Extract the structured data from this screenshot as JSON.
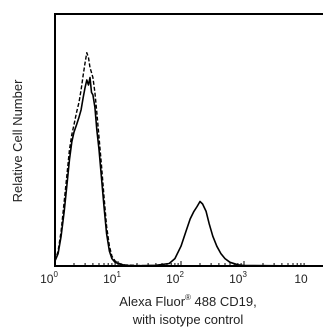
{
  "chart_data": {
    "type": "line",
    "x_scale": "log",
    "xlim": [
      1,
      10000
    ],
    "x_ticks": [
      {
        "base": "10",
        "exp": "0"
      },
      {
        "base": "10",
        "exp": "1"
      },
      {
        "base": "10",
        "exp": "2"
      },
      {
        "base": "10",
        "exp": "3"
      },
      {
        "base": "10",
        "exp": ""
      }
    ],
    "ylim": [
      0,
      100
    ],
    "y_ticks_shown": false,
    "grid": false,
    "legend": "none",
    "ylabel": "Relative Cell Number",
    "xlabel_line1_pre": "Alexa Fluor",
    "xlabel_line1_sup": "®",
    "xlabel_line1_post": " 488 CD19,",
    "xlabel_line2": "with isotype control",
    "series": [
      {
        "style": "solid",
        "color": "#000000",
        "x": [
          1.0,
          1.12,
          1.25,
          1.4,
          1.55,
          1.7,
          1.85,
          2.0,
          2.2,
          2.4,
          2.6,
          2.8,
          3.0,
          3.2,
          3.4,
          3.6,
          3.8,
          4.0,
          4.3,
          4.6,
          5.0,
          5.5,
          6.0,
          6.6,
          7.3,
          8.0,
          9.0,
          10.5,
          13.0,
          20.0,
          40.0,
          65.0,
          80.0,
          100,
          120,
          140,
          160,
          180,
          200,
          220,
          250,
          280,
          320,
          370,
          430,
          500,
          600,
          800,
          1000,
          10000
        ],
        "y": [
          2,
          5,
          12,
          22,
          33,
          43,
          50,
          54,
          57,
          60,
          63,
          68,
          72,
          75,
          73,
          76,
          70,
          69,
          64,
          55,
          47,
          35,
          24,
          13,
          6,
          3,
          1.5,
          0.8,
          0.3,
          0.1,
          0.3,
          1,
          3,
          8,
          14,
          19,
          22,
          24,
          26,
          25,
          22,
          17,
          12,
          8,
          5,
          3,
          1.5,
          0.5,
          0.2,
          0
        ]
      },
      {
        "style": "dashed",
        "color": "#000000",
        "x": [
          1.0,
          1.12,
          1.25,
          1.4,
          1.55,
          1.7,
          1.85,
          2.0,
          2.2,
          2.4,
          2.6,
          2.8,
          3.0,
          3.2,
          3.4,
          3.6,
          3.8,
          4.0,
          4.3,
          4.6,
          5.0,
          5.5,
          6.0,
          6.6,
          7.3,
          8.0,
          9.0,
          10.5,
          13.0,
          20.0,
          40.0,
          100,
          1000,
          10000
        ],
        "y": [
          2,
          6,
          14,
          26,
          37,
          47,
          53,
          57,
          62,
          66,
          71,
          77,
          82,
          86,
          84,
          80,
          78,
          76,
          70,
          62,
          52,
          40,
          28,
          16,
          8,
          4,
          2,
          1,
          0.4,
          0.2,
          0.1,
          0.1,
          0,
          0
        ]
      }
    ]
  }
}
